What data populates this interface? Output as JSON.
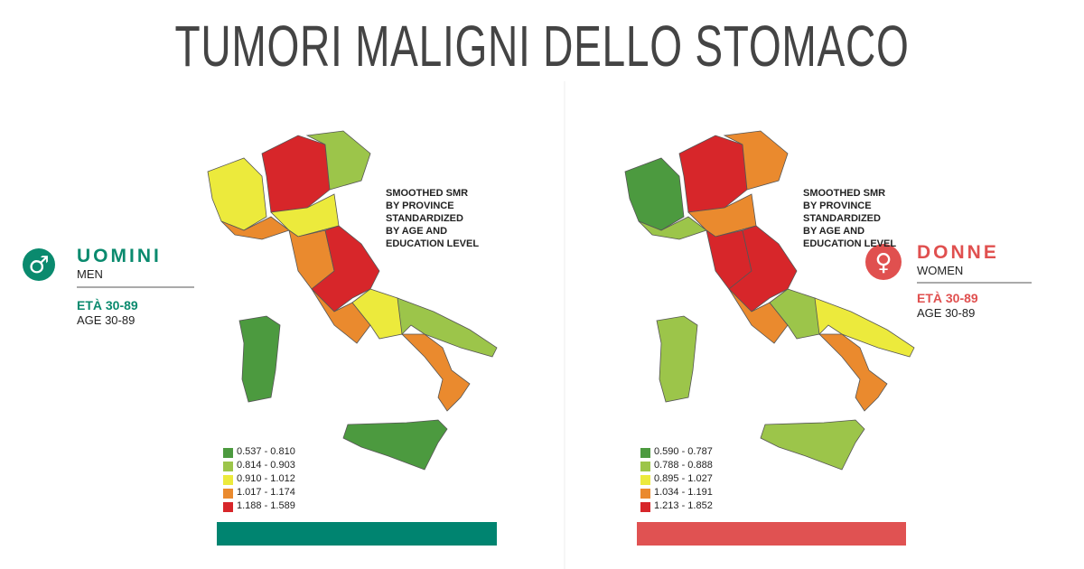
{
  "title": "TUMORI MALIGNI DELLO STOMACO",
  "panels": [
    {
      "sex": "UOMINI",
      "sex_en": "MEN",
      "age": "ETÀ 30-89",
      "age_en": "AGE 30-89",
      "note": [
        "SMOOTHED SMR",
        "BY PROVINCE",
        "STANDARDIZED",
        "BY AGE AND",
        "EDUCATION LEVEL"
      ],
      "legend": [
        {
          "label": "0.537 - 0.810",
          "color": "#4c9a3f"
        },
        {
          "label": "0.814 - 0.903",
          "color": "#9cc54a"
        },
        {
          "label": "0.910 - 1.012",
          "color": "#ecea3c"
        },
        {
          "label": "1.017 - 1.174",
          "color": "#ea8a2e"
        },
        {
          "label": "1.188 - 1.589",
          "color": "#d7262a"
        }
      ]
    },
    {
      "sex": "DONNE",
      "sex_en": "WOMEN",
      "age": "ETÀ 30-89",
      "age_en": "AGE 30-89",
      "note": [
        "SMOOTHED SMR",
        "BY PROVINCE",
        "STANDARDIZED",
        "BY AGE AND",
        "EDUCATION LEVEL"
      ],
      "legend": [
        {
          "label": "0.590 - 0.787",
          "color": "#4c9a3f"
        },
        {
          "label": "0.788 - 0.888",
          "color": "#9cc54a"
        },
        {
          "label": "0.895 - 1.027",
          "color": "#ecea3c"
        },
        {
          "label": "1.034 - 1.191",
          "color": "#ea8a2e"
        },
        {
          "label": "1.213 - 1.852",
          "color": "#d7262a"
        }
      ]
    }
  ]
}
